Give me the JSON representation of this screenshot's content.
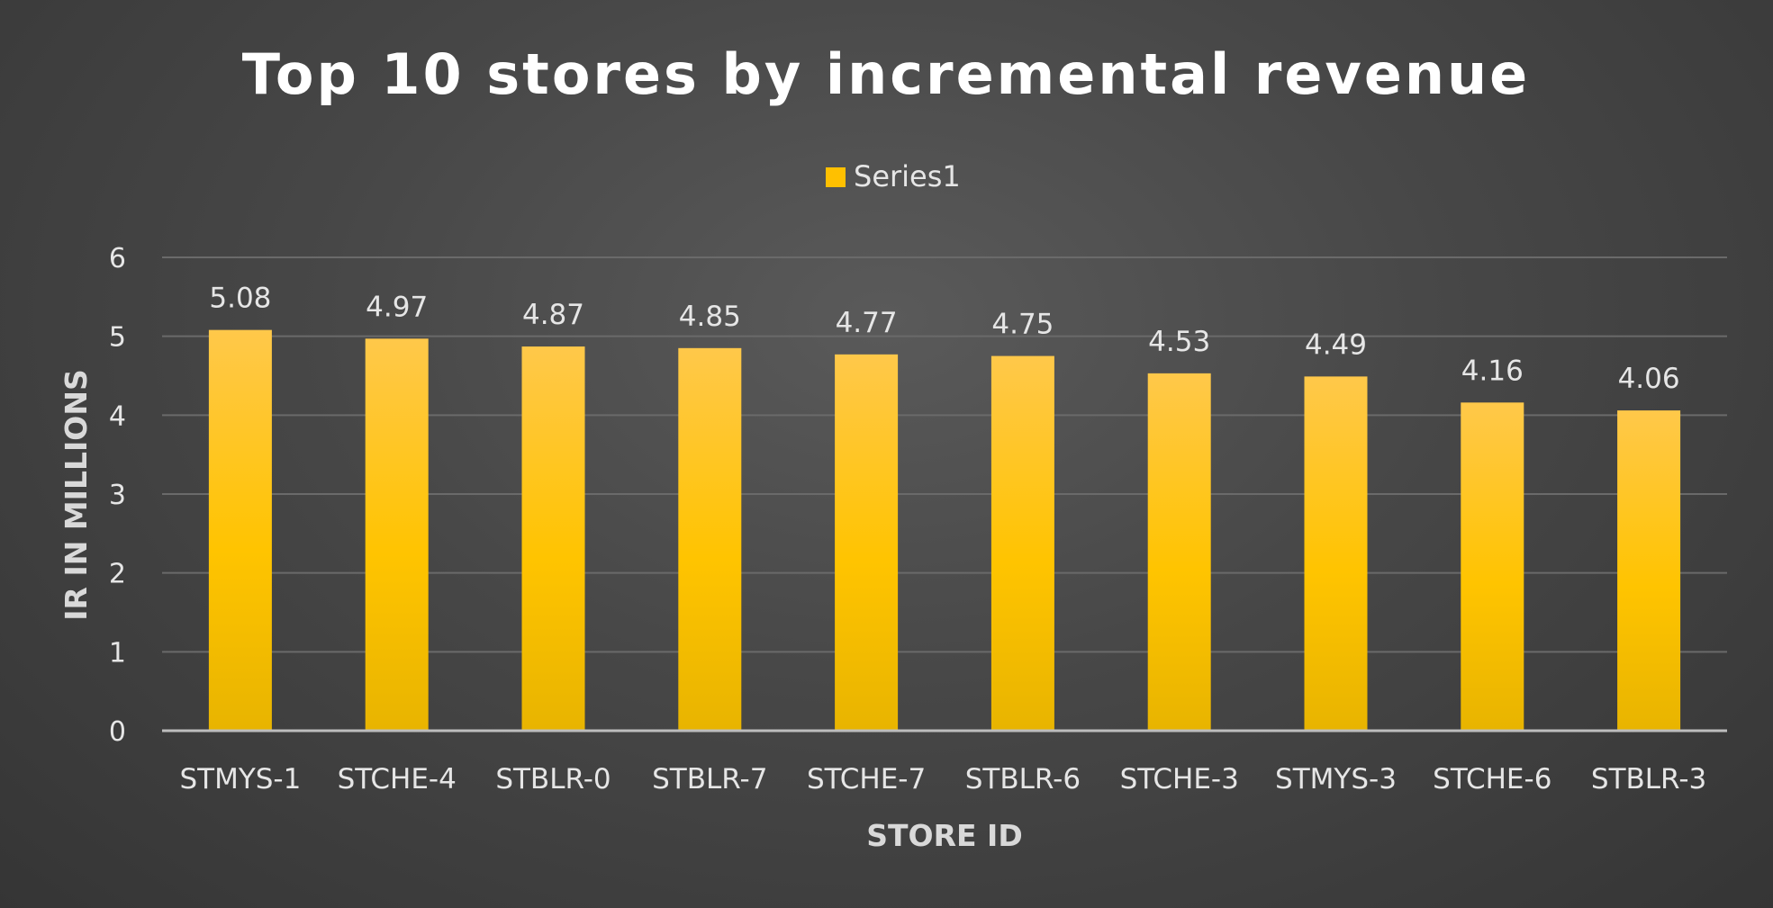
{
  "chart_data": {
    "type": "bar",
    "title": "Top 10 stores by incremental revenue",
    "xlabel": "STORE ID",
    "ylabel": "IR IN MILLIONS",
    "categories": [
      "STMYS-1",
      "STCHE-4",
      "STBLR-0",
      "STBLR-7",
      "STCHE-7",
      "STBLR-6",
      "STCHE-3",
      "STMYS-3",
      "STCHE-6",
      "STBLR-3"
    ],
    "series": [
      {
        "name": "Series1",
        "values": [
          5.08,
          4.97,
          4.87,
          4.85,
          4.77,
          4.75,
          4.53,
          4.49,
          4.16,
          4.06
        ],
        "labels": [
          "5.08",
          "4.97",
          "4.87",
          "4.85",
          "4.77",
          "4.75",
          "4.53",
          "4.49",
          "4.16",
          "4.06"
        ]
      }
    ],
    "ylim": [
      0,
      6
    ],
    "yticks": [
      "0",
      "1",
      "2",
      "3",
      "4",
      "5",
      "6"
    ],
    "grid": true,
    "legend_position": "top-center",
    "colors": {
      "bar_top": "#ffc84a",
      "bar_mid": "#ffc400",
      "bar_bottom": "#e8b400",
      "legend_swatch": "#ffc000"
    }
  }
}
